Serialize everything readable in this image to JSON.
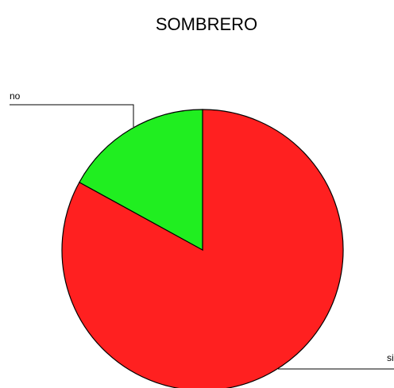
{
  "chart_data": {
    "type": "pie",
    "title": "SOMBRERO",
    "categories": [
      "si",
      "no"
    ],
    "values": [
      83,
      17
    ],
    "colors": [
      "#ff2020",
      "#20ee20"
    ]
  }
}
